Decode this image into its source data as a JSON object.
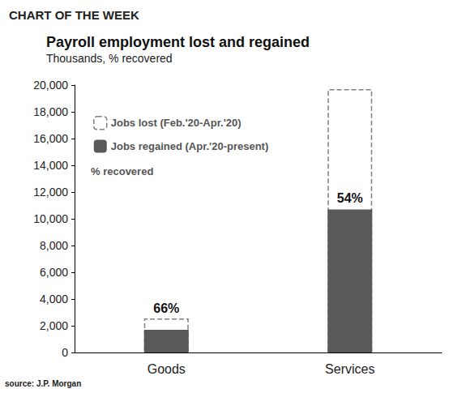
{
  "chart_data": {
    "type": "bar",
    "header": "CHART OF THE WEEK",
    "title": "Payroll employment lost and regained",
    "subtitle": "Thousands, % recovered",
    "source": "source: J.P. Morgan",
    "categories": [
      "Goods",
      "Services"
    ],
    "series": [
      {
        "name": "Jobs lost (Feb.'20-Apr.'20)",
        "color": "#808080",
        "line_style": "dashed",
        "values": [
          2550,
          19700
        ]
      },
      {
        "name": "Jobs regained (Apr.'20-present)",
        "color": "#595959",
        "values": [
          1700,
          10700
        ]
      }
    ],
    "annotations": [
      {
        "text": "% recovered"
      },
      {
        "category": "Goods",
        "text": "66%"
      },
      {
        "category": "Services",
        "text": "54%"
      }
    ],
    "ylim": [
      0,
      20000
    ],
    "yticks": [
      0,
      {
        "value": 2000,
        "label": "2,000"
      },
      {
        "value": 4000,
        "label": "4,000"
      },
      {
        "value": 6000,
        "label": "6,000"
      },
      {
        "value": 8000,
        "label": "8,000"
      },
      {
        "value": 10000,
        "label": "10,000"
      },
      {
        "value": 12000,
        "label": "12,000"
      },
      {
        "value": 14000,
        "label": "14,000"
      },
      {
        "value": 16000,
        "label": "16,000"
      },
      {
        "value": 18000,
        "label": "18,000"
      },
      {
        "value": 20000,
        "label": "20,000"
      }
    ],
    "grid": false,
    "legend": "upper left",
    "stacked": false
  }
}
